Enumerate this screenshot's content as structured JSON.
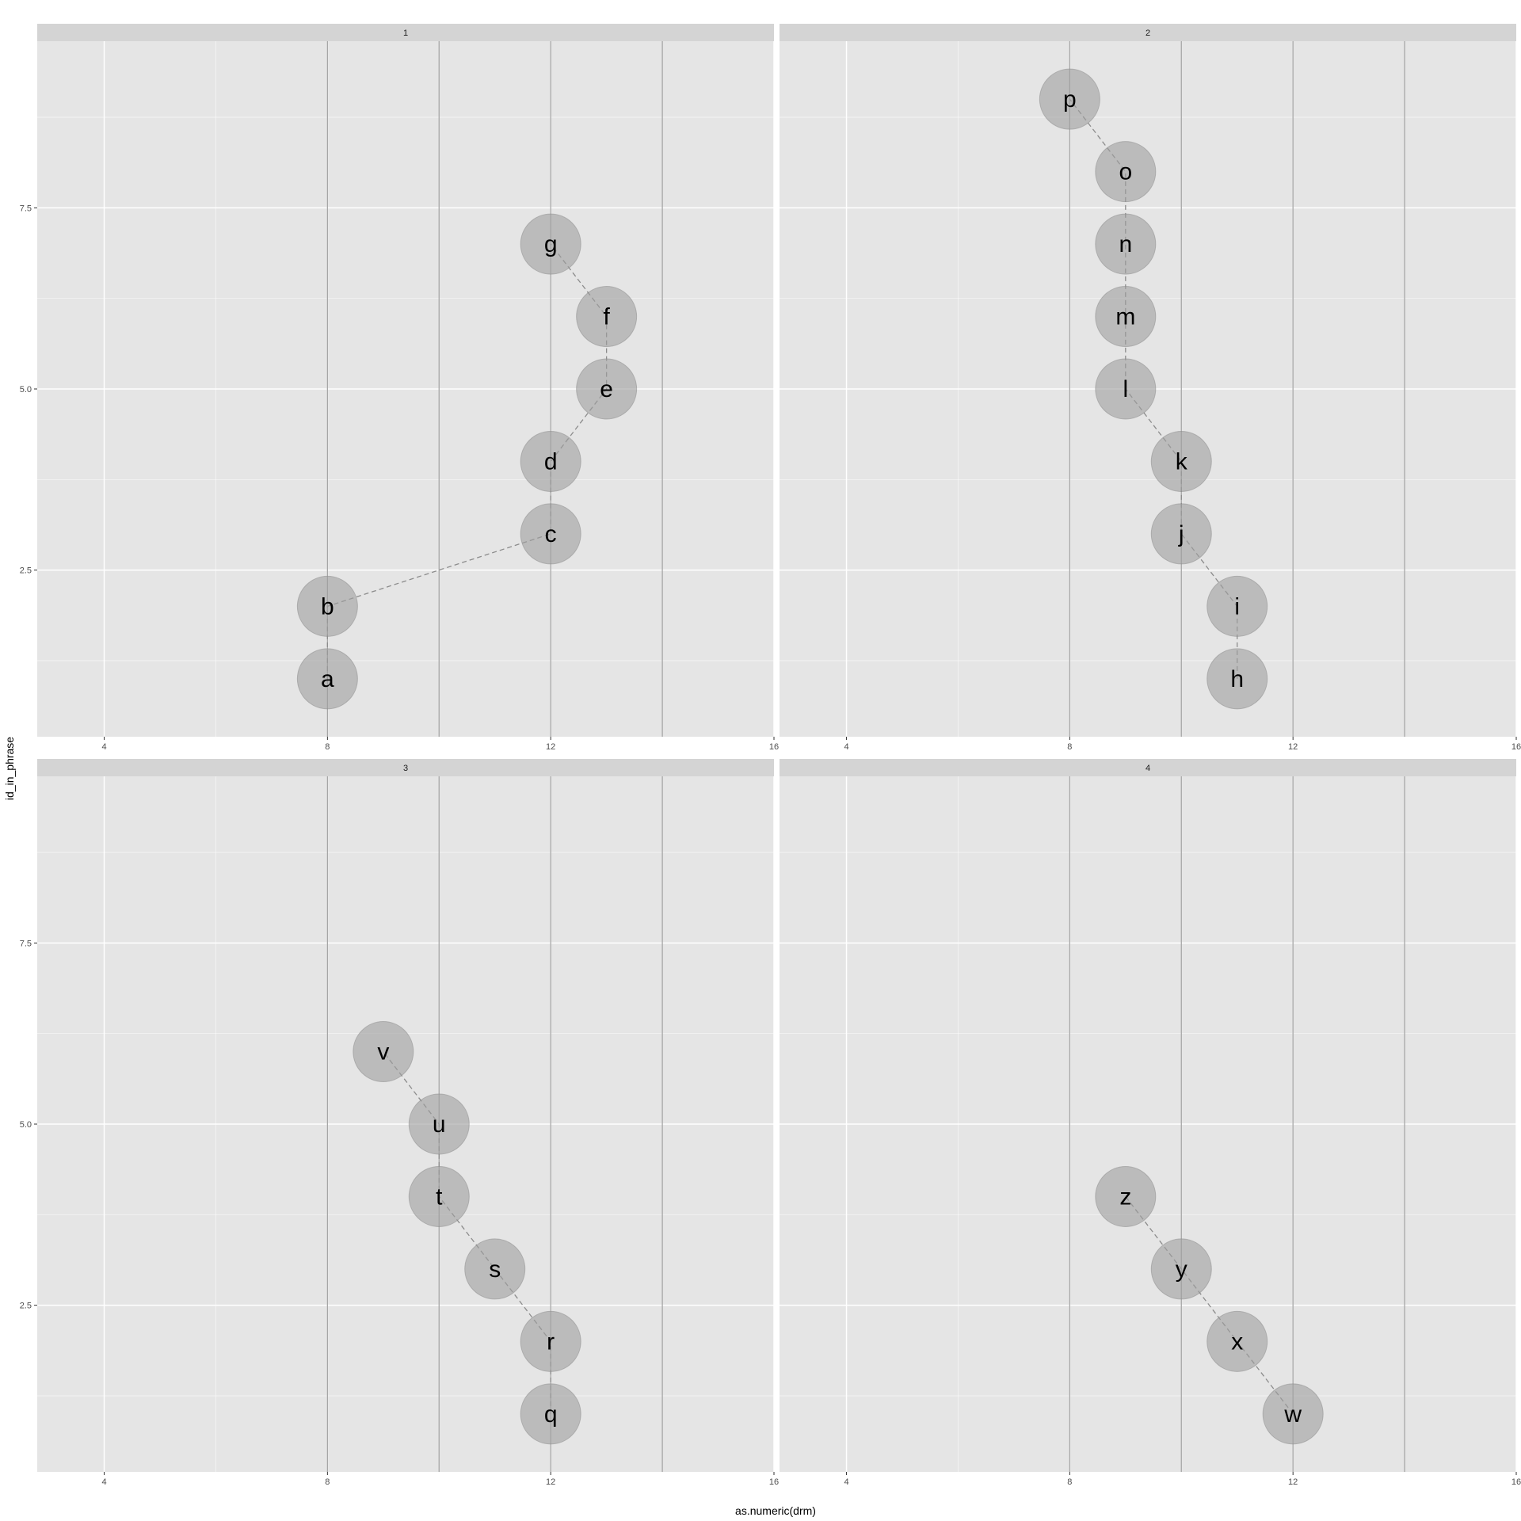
{
  "chart_data": {
    "type": "scatter",
    "xlabel": "as.numeric(drm)",
    "ylabel": "id_in_phrase",
    "xlim": [
      2.8,
      16.0
    ],
    "ylim": [
      0.2,
      9.8
    ],
    "x_ticks": [
      4,
      8,
      12,
      16
    ],
    "x_tick_labels": [
      "4",
      "8",
      "12",
      "16"
    ],
    "y_ticks": [
      2.5,
      5.0,
      7.5
    ],
    "y_tick_labels": [
      "2.5",
      "5.0",
      "7.5"
    ],
    "highlight_x_lines": [
      8,
      10,
      12,
      14
    ],
    "grid": true,
    "legend": "none",
    "connector": "dashed line joining consecutive points",
    "colors": {
      "panel_bg": "#e5e5e5",
      "strip_bg": "#d4d4d4",
      "grid_major": "#ffffff",
      "vline": "#a6a6a6",
      "point_fill": "#9e9e9e",
      "connector": "#8c8c8c",
      "text": "#000000",
      "tick_text": "#4d4d4d"
    },
    "facets": [
      {
        "label": "1",
        "points": [
          {
            "label": "a",
            "x": 8,
            "y": 1
          },
          {
            "label": "b",
            "x": 8,
            "y": 2
          },
          {
            "label": "c",
            "x": 12,
            "y": 3
          },
          {
            "label": "d",
            "x": 12,
            "y": 4
          },
          {
            "label": "e",
            "x": 13,
            "y": 5
          },
          {
            "label": "f",
            "x": 13,
            "y": 6
          },
          {
            "label": "g",
            "x": 12,
            "y": 7
          }
        ]
      },
      {
        "label": "2",
        "points": [
          {
            "label": "h",
            "x": 11,
            "y": 1
          },
          {
            "label": "i",
            "x": 11,
            "y": 2
          },
          {
            "label": "j",
            "x": 10,
            "y": 3
          },
          {
            "label": "k",
            "x": 10,
            "y": 4
          },
          {
            "label": "l",
            "x": 9,
            "y": 5
          },
          {
            "label": "m",
            "x": 9,
            "y": 6
          },
          {
            "label": "n",
            "x": 9,
            "y": 7
          },
          {
            "label": "o",
            "x": 9,
            "y": 8
          },
          {
            "label": "p",
            "x": 8,
            "y": 9
          }
        ]
      },
      {
        "label": "3",
        "points": [
          {
            "label": "q",
            "x": 12,
            "y": 1
          },
          {
            "label": "r",
            "x": 12,
            "y": 2
          },
          {
            "label": "s",
            "x": 11,
            "y": 3
          },
          {
            "label": "t",
            "x": 10,
            "y": 4
          },
          {
            "label": "u",
            "x": 10,
            "y": 5
          },
          {
            "label": "v",
            "x": 9,
            "y": 6
          }
        ]
      },
      {
        "label": "4",
        "points": [
          {
            "label": "w",
            "x": 12,
            "y": 1
          },
          {
            "label": "x",
            "x": 11,
            "y": 2
          },
          {
            "label": "y",
            "x": 10,
            "y": 3
          },
          {
            "label": "z",
            "x": 9,
            "y": 4
          }
        ]
      }
    ]
  }
}
